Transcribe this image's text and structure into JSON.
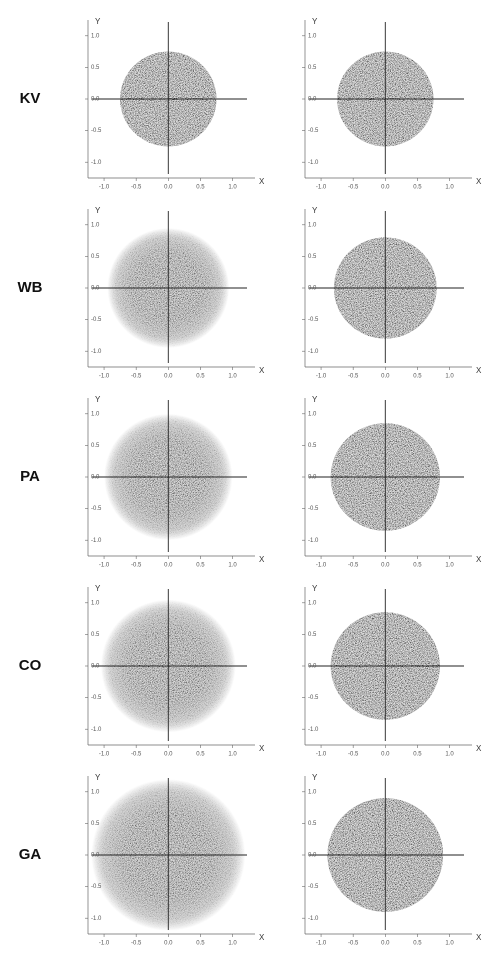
{
  "chart_data": [
    {
      "type": "scatter",
      "title": "KV",
      "xlabel": "X",
      "ylabel": "Y",
      "radius": 0.75,
      "edge": "sharp",
      "xlim": [
        -1.25,
        1.35
      ],
      "ylim": [
        -1.25,
        1.25
      ],
      "xticks": [
        {
          "value": -1,
          "label": "-1.0"
        },
        {
          "value": -0.5,
          "label": "-0.5"
        },
        {
          "value": 0,
          "label": "0.0"
        },
        {
          "value": 0.5,
          "label": "0.5"
        },
        {
          "value": 1,
          "label": "1.0"
        }
      ],
      "yticks": [
        {
          "value": -1,
          "label": "-1.0"
        },
        {
          "value": -0.5,
          "label": "-0.5"
        },
        {
          "value": 0,
          "label": "0.0"
        },
        {
          "value": 0.5,
          "label": "0.5"
        },
        {
          "value": 1,
          "label": "1.0"
        }
      ]
    },
    {
      "type": "scatter",
      "xlabel": "X",
      "ylabel": "Y",
      "radius": 0.75,
      "edge": "sharp",
      "xlim": [
        -1.25,
        1.35
      ],
      "ylim": [
        -1.25,
        1.25
      ],
      "xticks": [
        {
          "value": -1,
          "label": "-1.0"
        },
        {
          "value": -0.5,
          "label": "-0.5"
        },
        {
          "value": 0,
          "label": "0.0"
        },
        {
          "value": 0.5,
          "label": "0.5"
        },
        {
          "value": 1,
          "label": "1.0"
        }
      ],
      "yticks": [
        {
          "value": -1,
          "label": "-1.0"
        },
        {
          "value": -0.5,
          "label": "-0.5"
        },
        {
          "value": 0,
          "label": "0.0"
        },
        {
          "value": 0.5,
          "label": "0.5"
        },
        {
          "value": 1,
          "label": "1.0"
        }
      ]
    },
    {
      "type": "scatter",
      "title": "WB",
      "xlabel": "X",
      "ylabel": "Y",
      "radius": 0.95,
      "edge": "diffuse",
      "xlim": [
        -1.25,
        1.35
      ],
      "ylim": [
        -1.25,
        1.25
      ],
      "xticks": [
        {
          "value": -1,
          "label": "-1.0"
        },
        {
          "value": -0.5,
          "label": "-0.5"
        },
        {
          "value": 0,
          "label": "0.0"
        },
        {
          "value": 0.5,
          "label": "0.5"
        },
        {
          "value": 1,
          "label": "1.0"
        }
      ],
      "yticks": [
        {
          "value": -1,
          "label": "-1.0"
        },
        {
          "value": -0.5,
          "label": "-0.5"
        },
        {
          "value": 0,
          "label": "0.0"
        },
        {
          "value": 0.5,
          "label": "0.5"
        },
        {
          "value": 1,
          "label": "1.0"
        }
      ]
    },
    {
      "type": "scatter",
      "xlabel": "X",
      "ylabel": "Y",
      "radius": 0.8,
      "edge": "sharp",
      "xlim": [
        -1.25,
        1.35
      ],
      "ylim": [
        -1.25,
        1.25
      ],
      "xticks": [
        {
          "value": -1,
          "label": "-1.0"
        },
        {
          "value": -0.5,
          "label": "-0.5"
        },
        {
          "value": 0,
          "label": "0.0"
        },
        {
          "value": 0.5,
          "label": "0.5"
        },
        {
          "value": 1,
          "label": "1.0"
        }
      ],
      "yticks": [
        {
          "value": -1,
          "label": "-1.0"
        },
        {
          "value": -0.5,
          "label": "-0.5"
        },
        {
          "value": 0,
          "label": "0.0"
        },
        {
          "value": 0.5,
          "label": "0.5"
        },
        {
          "value": 1,
          "label": "1.0"
        }
      ]
    },
    {
      "type": "scatter",
      "title": "PA",
      "xlabel": "X",
      "ylabel": "Y",
      "radius": 1.0,
      "edge": "diffuse",
      "xlim": [
        -1.25,
        1.35
      ],
      "ylim": [
        -1.25,
        1.25
      ],
      "xticks": [
        {
          "value": -1,
          "label": "-1.0"
        },
        {
          "value": -0.5,
          "label": "-0.5"
        },
        {
          "value": 0,
          "label": "0.0"
        },
        {
          "value": 0.5,
          "label": "0.5"
        },
        {
          "value": 1,
          "label": "1.0"
        }
      ],
      "yticks": [
        {
          "value": -1,
          "label": "-1.0"
        },
        {
          "value": -0.5,
          "label": "-0.5"
        },
        {
          "value": 0,
          "label": "0.0"
        },
        {
          "value": 0.5,
          "label": "0.5"
        },
        {
          "value": 1,
          "label": "1.0"
        }
      ]
    },
    {
      "type": "scatter",
      "xlabel": "X",
      "ylabel": "Y",
      "radius": 0.85,
      "edge": "sharp",
      "xlim": [
        -1.25,
        1.35
      ],
      "ylim": [
        -1.25,
        1.25
      ],
      "xticks": [
        {
          "value": -1,
          "label": "-1.0"
        },
        {
          "value": -0.5,
          "label": "-0.5"
        },
        {
          "value": 0,
          "label": "0.0"
        },
        {
          "value": 0.5,
          "label": "0.5"
        },
        {
          "value": 1,
          "label": "1.0"
        }
      ],
      "yticks": [
        {
          "value": -1,
          "label": "-1.0"
        },
        {
          "value": -0.5,
          "label": "-0.5"
        },
        {
          "value": 0,
          "label": "0.0"
        },
        {
          "value": 0.5,
          "label": "0.5"
        },
        {
          "value": 1,
          "label": "1.0"
        }
      ]
    },
    {
      "type": "scatter",
      "title": "CO",
      "xlabel": "X",
      "ylabel": "Y",
      "radius": 1.05,
      "edge": "diffuse",
      "xlim": [
        -1.25,
        1.35
      ],
      "ylim": [
        -1.25,
        1.25
      ],
      "xticks": [
        {
          "value": -1,
          "label": "-1.0"
        },
        {
          "value": -0.5,
          "label": "-0.5"
        },
        {
          "value": 0,
          "label": "0.0"
        },
        {
          "value": 0.5,
          "label": "0.5"
        },
        {
          "value": 1,
          "label": "1.0"
        }
      ],
      "yticks": [
        {
          "value": -1,
          "label": "-1.0"
        },
        {
          "value": -0.5,
          "label": "-0.5"
        },
        {
          "value": 0,
          "label": "0.0"
        },
        {
          "value": 0.5,
          "label": "0.5"
        },
        {
          "value": 1,
          "label": "1.0"
        }
      ]
    },
    {
      "type": "scatter",
      "xlabel": "X",
      "ylabel": "Y",
      "radius": 0.85,
      "edge": "sharp",
      "xlim": [
        -1.25,
        1.35
      ],
      "ylim": [
        -1.25,
        1.25
      ],
      "xticks": [
        {
          "value": -1,
          "label": "-1.0"
        },
        {
          "value": -0.5,
          "label": "-0.5"
        },
        {
          "value": 0,
          "label": "0.0"
        },
        {
          "value": 0.5,
          "label": "0.5"
        },
        {
          "value": 1,
          "label": "1.0"
        }
      ],
      "yticks": [
        {
          "value": -1,
          "label": "-1.0"
        },
        {
          "value": -0.5,
          "label": "-0.5"
        },
        {
          "value": 0,
          "label": "0.0"
        },
        {
          "value": 0.5,
          "label": "0.5"
        },
        {
          "value": 1,
          "label": "1.0"
        }
      ]
    },
    {
      "type": "scatter",
      "title": "GA",
      "xlabel": "X",
      "ylabel": "Y",
      "radius": 1.2,
      "edge": "diffuse",
      "xlim": [
        -1.25,
        1.35
      ],
      "ylim": [
        -1.25,
        1.25
      ],
      "xticks": [
        {
          "value": -1,
          "label": "-1.0"
        },
        {
          "value": -0.5,
          "label": "-0.5"
        },
        {
          "value": 0,
          "label": "0.0"
        },
        {
          "value": 0.5,
          "label": "0.5"
        },
        {
          "value": 1,
          "label": "1.0"
        }
      ],
      "yticks": [
        {
          "value": -1,
          "label": "-1.0"
        },
        {
          "value": -0.5,
          "label": "-0.5"
        },
        {
          "value": 0,
          "label": "0.0"
        },
        {
          "value": 0.5,
          "label": "0.5"
        },
        {
          "value": 1,
          "label": "1.0"
        }
      ]
    },
    {
      "type": "scatter",
      "xlabel": "X",
      "ylabel": "Y",
      "radius": 0.9,
      "edge": "sharp",
      "xlim": [
        -1.25,
        1.35
      ],
      "ylim": [
        -1.25,
        1.25
      ],
      "xticks": [
        {
          "value": -1,
          "label": "-1.0"
        },
        {
          "value": -0.5,
          "label": "-0.5"
        },
        {
          "value": 0,
          "label": "0.0"
        },
        {
          "value": 0.5,
          "label": "0.5"
        },
        {
          "value": 1,
          "label": "1.0"
        }
      ],
      "yticks": [
        {
          "value": -1,
          "label": "-1.0"
        },
        {
          "value": -0.5,
          "label": "-0.5"
        },
        {
          "value": 0,
          "label": "0.0"
        },
        {
          "value": 0.5,
          "label": "0.5"
        },
        {
          "value": 1,
          "label": "1.0"
        }
      ]
    }
  ]
}
